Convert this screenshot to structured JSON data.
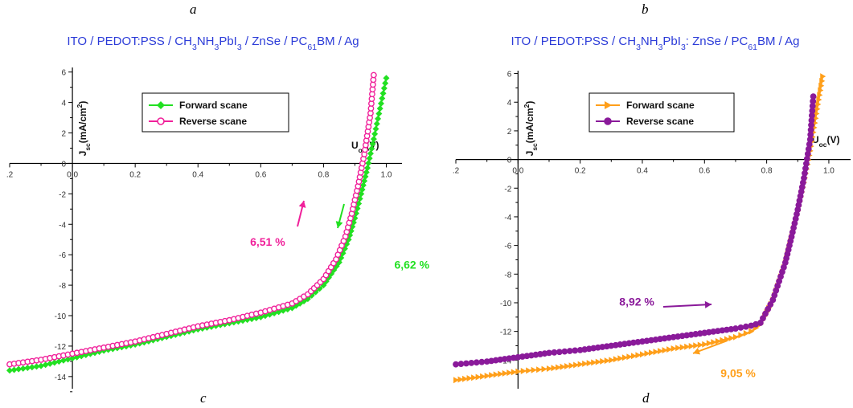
{
  "panels": {
    "a": "a",
    "b": "b",
    "c": "c",
    "d": "d"
  },
  "chart_data": [
    {
      "type": "line",
      "title_parts": [
        "ITO / PEDOT:PSS / CH",
        "3",
        "NH",
        "3",
        "PbI",
        "3",
        " / ZnSe / PC",
        "61",
        "BM / Ag"
      ],
      "ylabel_parts": [
        "J",
        "sc",
        "(mA/cm",
        "2",
        ")"
      ],
      "xlabel_parts": [
        "U",
        "oc",
        "(V)"
      ],
      "xlim": [
        -0.2,
        1.05
      ],
      "ylim": [
        -14.8,
        6.3
      ],
      "xticks": [
        -0.2,
        0.0,
        0.2,
        0.4,
        0.6,
        0.8,
        1.0
      ],
      "xtick_labels": [
        ".2",
        "0.0",
        "0.2",
        "0.4",
        "0.6",
        "0.8",
        "1.0"
      ],
      "yticks": [
        6,
        4,
        2,
        0,
        -2,
        -4,
        -6,
        -8,
        -10,
        -12,
        -14
      ],
      "ytick_labels": [
        "6",
        "4",
        "2",
        "0",
        "-2",
        "-4",
        "-6",
        "-8",
        "-10",
        "-12",
        "-14"
      ],
      "grid": false,
      "legend_position": "top-center",
      "series": [
        {
          "name": "Forward scane",
          "color": "#22e022",
          "marker": "diamond",
          "x": [
            -0.2,
            -0.1,
            0.0,
            0.1,
            0.2,
            0.3,
            0.4,
            0.5,
            0.6,
            0.7,
            0.75,
            0.8,
            0.85,
            0.88,
            0.9,
            0.92,
            0.94,
            0.96,
            0.98,
            1.0
          ],
          "y": [
            -13.6,
            -13.3,
            -12.8,
            -12.3,
            -11.9,
            -11.4,
            -10.9,
            -10.5,
            -10.1,
            -9.5,
            -8.9,
            -8.0,
            -6.5,
            -5.0,
            -3.6,
            -2.0,
            -0.3,
            1.6,
            3.6,
            5.6
          ]
        },
        {
          "name": "Reverse scane",
          "color": "#f0209a",
          "marker": "circle",
          "x": [
            -0.2,
            -0.1,
            0.0,
            0.1,
            0.2,
            0.3,
            0.4,
            0.5,
            0.6,
            0.7,
            0.75,
            0.8,
            0.84,
            0.87,
            0.89,
            0.91,
            0.93,
            0.95,
            0.96
          ],
          "y": [
            -13.2,
            -12.9,
            -12.5,
            -12.1,
            -11.7,
            -11.2,
            -10.7,
            -10.3,
            -9.8,
            -9.2,
            -8.6,
            -7.6,
            -6.3,
            -4.8,
            -3.3,
            -1.5,
            0.6,
            3.3,
            5.8
          ]
        }
      ],
      "annotations": [
        {
          "text": "6,51 %",
          "color": "#f0209a",
          "x": 0.73,
          "y": -5.1
        },
        {
          "text": "6,62 %",
          "color": "#22e022",
          "x": 1.0,
          "y": -6.6
        }
      ]
    },
    {
      "type": "line",
      "title_parts": [
        "ITO / PEDOT:PSS / CH",
        "3",
        "NH",
        "3",
        "PbI",
        "3",
        ": ZnSe / PC",
        "61",
        "BM / Ag"
      ],
      "ylabel_parts": [
        "J",
        "sc",
        "(mA/cm",
        "2",
        ")"
      ],
      "xlabel_parts": [
        "U",
        "oc",
        "(V)"
      ],
      "xlim": [
        -0.2,
        1.07
      ],
      "ylim": [
        -16.0,
        6.2
      ],
      "xticks": [
        -0.2,
        0.0,
        0.2,
        0.4,
        0.6,
        0.8,
        1.0
      ],
      "xtick_labels": [
        ".2",
        "0.0",
        "0.2",
        "0.4",
        "0.6",
        "0.8",
        "1.0"
      ],
      "yticks": [
        6,
        4,
        2,
        0,
        -2,
        -4,
        -6,
        -8,
        -10,
        -12,
        -14
      ],
      "ytick_labels": [
        "6",
        "4",
        "2",
        "0",
        "-2",
        "-4",
        "-6",
        "-8",
        "-10",
        "-12",
        "-14"
      ],
      "grid": false,
      "legend_position": "top-center",
      "series": [
        {
          "name": "Forward scane",
          "color": "#ff9f1a",
          "marker": "triangle",
          "x": [
            -0.2,
            -0.1,
            0.0,
            0.1,
            0.2,
            0.3,
            0.4,
            0.5,
            0.6,
            0.7,
            0.75,
            0.78,
            0.82,
            0.86,
            0.88,
            0.9,
            0.92,
            0.94,
            0.96,
            0.98
          ],
          "y": [
            -15.4,
            -15.1,
            -14.8,
            -14.6,
            -14.3,
            -14.0,
            -13.6,
            -13.2,
            -12.9,
            -12.4,
            -12.0,
            -11.5,
            -9.8,
            -7.2,
            -5.4,
            -3.6,
            -1.6,
            0.6,
            3.2,
            5.8
          ]
        },
        {
          "name": "Reverse scane",
          "color": "#8a1a9a",
          "marker": "circle",
          "x": [
            -0.2,
            -0.1,
            0.0,
            0.1,
            0.2,
            0.3,
            0.4,
            0.5,
            0.6,
            0.7,
            0.75,
            0.78,
            0.82,
            0.86,
            0.88,
            0.9,
            0.92,
            0.94,
            0.95
          ],
          "y": [
            -14.3,
            -14.1,
            -13.8,
            -13.5,
            -13.3,
            -13.0,
            -12.7,
            -12.4,
            -12.1,
            -11.8,
            -11.6,
            -11.4,
            -9.8,
            -7.2,
            -5.4,
            -3.5,
            -1.3,
            1.4,
            4.4
          ]
        }
      ],
      "annotations": [
        {
          "text": "8,92 %",
          "color": "#8a1a9a",
          "x": 0.3,
          "y": -10.2
        },
        {
          "text": "9,05 %",
          "color": "#ff9f1a",
          "x": 0.6,
          "y": -15.2
        }
      ]
    }
  ]
}
